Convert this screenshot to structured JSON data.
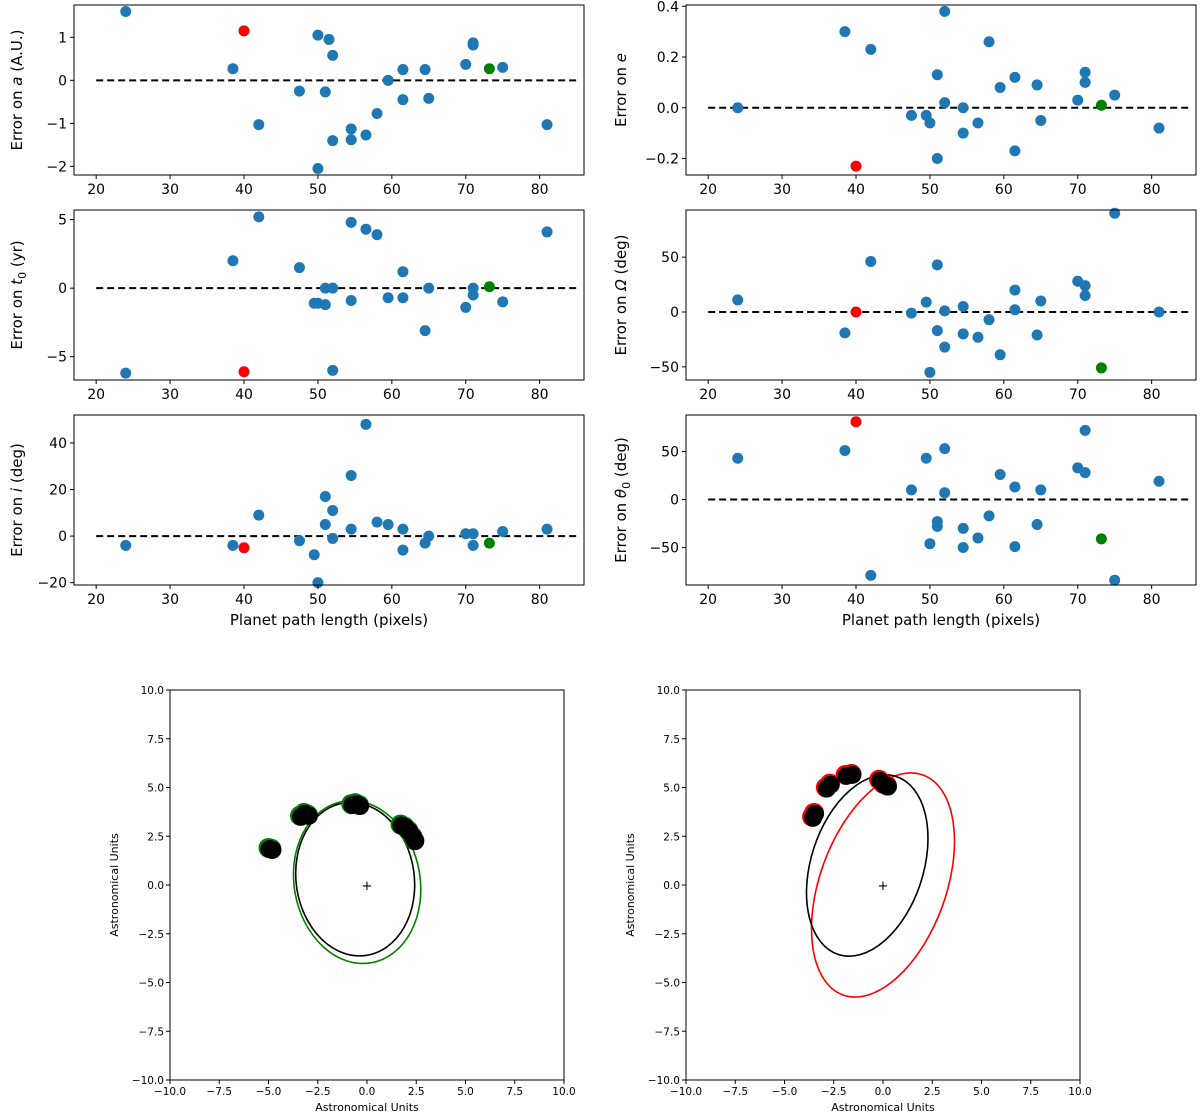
{
  "chart_data": [
    {
      "type": "scatter",
      "ylabel_pre": "Error on ",
      "ylabel_sym": "a",
      "ylabel_post": " (A.U.)",
      "xlabel": "",
      "xlim": [
        17,
        86
      ],
      "ylim": [
        -2.2,
        1.75
      ],
      "xticks": [
        20,
        30,
        40,
        50,
        60,
        70,
        80
      ],
      "yticks": [
        -2,
        -1,
        0,
        1
      ],
      "ytick_labels": [
        "−2",
        "−1",
        "0",
        "1"
      ],
      "reference_line_y": 0,
      "series": [
        {
          "color": "#1f77b4",
          "points": [
            [
              24,
              1.6
            ],
            [
              38.5,
              0.27
            ],
            [
              42,
              -1.03
            ],
            [
              47.5,
              -0.25
            ],
            [
              50,
              1.05
            ],
            [
              50,
              -2.05
            ],
            [
              51,
              -0.27
            ],
            [
              51.5,
              0.95
            ],
            [
              52,
              0.58
            ],
            [
              52,
              -1.4
            ],
            [
              54.5,
              -1.13
            ],
            [
              54.5,
              -1.38
            ],
            [
              56.5,
              -1.27
            ],
            [
              58,
              -0.77
            ],
            [
              59.5,
              0.0
            ],
            [
              61.5,
              0.25
            ],
            [
              61.5,
              -0.45
            ],
            [
              64.5,
              0.25
            ],
            [
              65,
              -0.42
            ],
            [
              70,
              0.37
            ],
            [
              71,
              0.87
            ],
            [
              71,
              0.82
            ],
            [
              75,
              0.3
            ],
            [
              81,
              -1.03
            ]
          ]
        },
        {
          "color": "#ff0000",
          "points": [
            [
              40,
              1.15
            ]
          ]
        },
        {
          "color": "#008000",
          "points": [
            [
              73.2,
              0.27
            ]
          ]
        }
      ]
    },
    {
      "type": "scatter",
      "ylabel_pre": "Error on ",
      "ylabel_sym": "e",
      "ylabel_post": "",
      "xlabel": "",
      "xlim": [
        17,
        86
      ],
      "ylim": [
        -0.265,
        0.405
      ],
      "xticks": [
        20,
        30,
        40,
        50,
        60,
        70,
        80
      ],
      "yticks": [
        -0.2,
        0.0,
        0.2,
        0.4
      ],
      "ytick_labels": [
        "−0.2",
        "0.0",
        "0.2",
        "0.4"
      ],
      "reference_line_y": 0,
      "series": [
        {
          "color": "#1f77b4",
          "points": [
            [
              24,
              0.0
            ],
            [
              38.5,
              0.3
            ],
            [
              42,
              0.23
            ],
            [
              47.5,
              -0.03
            ],
            [
              49.5,
              -0.03
            ],
            [
              50,
              -0.06
            ],
            [
              51,
              0.13
            ],
            [
              51,
              -0.2
            ],
            [
              52,
              0.38
            ],
            [
              52,
              0.02
            ],
            [
              54.5,
              -0.1
            ],
            [
              54.5,
              0.0
            ],
            [
              56.5,
              -0.06
            ],
            [
              58,
              0.26
            ],
            [
              59.5,
              0.08
            ],
            [
              61.5,
              0.12
            ],
            [
              61.5,
              -0.17
            ],
            [
              64.5,
              0.09
            ],
            [
              65,
              -0.05
            ],
            [
              70,
              0.03
            ],
            [
              71,
              0.14
            ],
            [
              71,
              0.1
            ],
            [
              75,
              0.05
            ],
            [
              81,
              -0.08
            ]
          ]
        },
        {
          "color": "#ff0000",
          "points": [
            [
              40,
              -0.23
            ]
          ]
        },
        {
          "color": "#008000",
          "points": [
            [
              73.2,
              0.01
            ]
          ]
        }
      ]
    },
    {
      "type": "scatter",
      "ylabel_pre": "Error on ",
      "ylabel_sym": "t",
      "ylabel_sub": "0",
      "ylabel_post": " (yr)",
      "xlabel": "",
      "xlim": [
        17,
        86
      ],
      "ylim": [
        -6.7,
        5.7
      ],
      "xticks": [
        20,
        30,
        40,
        50,
        60,
        70,
        80
      ],
      "yticks": [
        -5,
        0,
        5
      ],
      "ytick_labels": [
        "−5",
        "0",
        "5"
      ],
      "reference_line_y": 0,
      "series": [
        {
          "color": "#1f77b4",
          "points": [
            [
              24,
              -6.2
            ],
            [
              38.5,
              2.0
            ],
            [
              42,
              5.2
            ],
            [
              47.5,
              1.5
            ],
            [
              49.5,
              -1.1
            ],
            [
              50,
              -1.1
            ],
            [
              51,
              0.0
            ],
            [
              51,
              -1.2
            ],
            [
              52,
              0.0
            ],
            [
              52,
              -6.0
            ],
            [
              54.5,
              4.8
            ],
            [
              54.5,
              -0.9
            ],
            [
              56.5,
              4.3
            ],
            [
              58,
              3.9
            ],
            [
              59.5,
              -0.7
            ],
            [
              61.5,
              1.2
            ],
            [
              61.5,
              -0.7
            ],
            [
              64.5,
              -3.1
            ],
            [
              65,
              0.0
            ],
            [
              70,
              -1.4
            ],
            [
              71,
              0.0
            ],
            [
              71,
              -0.5
            ],
            [
              75,
              -1.0
            ],
            [
              81,
              4.1
            ]
          ]
        },
        {
          "color": "#ff0000",
          "points": [
            [
              40,
              -6.1
            ]
          ]
        },
        {
          "color": "#008000",
          "points": [
            [
              73.2,
              0.1
            ]
          ]
        }
      ]
    },
    {
      "type": "scatter",
      "ylabel_pre": "Error on ",
      "ylabel_sym": "Ω",
      "ylabel_post": " (deg)",
      "xlabel": "",
      "xlim": [
        17,
        86
      ],
      "ylim": [
        -62,
        93
      ],
      "xticks": [
        20,
        30,
        40,
        50,
        60,
        70,
        80
      ],
      "yticks": [
        -50,
        0,
        50
      ],
      "ytick_labels": [
        "−50",
        "0",
        "50"
      ],
      "reference_line_y": 0,
      "series": [
        {
          "color": "#1f77b4",
          "points": [
            [
              24,
              11
            ],
            [
              38.5,
              -19
            ],
            [
              42,
              46
            ],
            [
              47.5,
              -1
            ],
            [
              49.5,
              9
            ],
            [
              50,
              -55
            ],
            [
              51,
              43
            ],
            [
              51,
              -17
            ],
            [
              52,
              -32
            ],
            [
              52,
              1
            ],
            [
              54.5,
              5
            ],
            [
              54.5,
              -20
            ],
            [
              56.5,
              -23
            ],
            [
              58,
              -7
            ],
            [
              59.5,
              -39
            ],
            [
              61.5,
              20
            ],
            [
              61.5,
              2
            ],
            [
              64.5,
              -21
            ],
            [
              65,
              10
            ],
            [
              70,
              28
            ],
            [
              71,
              24
            ],
            [
              71,
              15
            ],
            [
              75,
              90
            ],
            [
              81,
              0
            ]
          ]
        },
        {
          "color": "#ff0000",
          "points": [
            [
              40,
              0
            ]
          ]
        },
        {
          "color": "#008000",
          "points": [
            [
              73.2,
              -51
            ]
          ]
        }
      ]
    },
    {
      "type": "scatter",
      "ylabel_pre": "Error on ",
      "ylabel_sym": "i",
      "ylabel_post": " (deg)",
      "xlabel": "Planet path length (pixels)",
      "xlim": [
        17,
        86
      ],
      "ylim": [
        -21,
        52
      ],
      "xticks": [
        20,
        30,
        40,
        50,
        60,
        70,
        80
      ],
      "yticks": [
        -20,
        0,
        20,
        40
      ],
      "ytick_labels": [
        "−20",
        "0",
        "20",
        "40"
      ],
      "reference_line_y": 0,
      "series": [
        {
          "color": "#1f77b4",
          "points": [
            [
              24,
              -4
            ],
            [
              38.5,
              -4
            ],
            [
              42,
              9
            ],
            [
              47.5,
              -2
            ],
            [
              49.5,
              -8
            ],
            [
              50,
              -20
            ],
            [
              51,
              5
            ],
            [
              51,
              17
            ],
            [
              52,
              11
            ],
            [
              52,
              -1
            ],
            [
              54.5,
              26
            ],
            [
              54.5,
              3
            ],
            [
              56.5,
              48
            ],
            [
              58,
              6
            ],
            [
              59.5,
              5
            ],
            [
              61.5,
              3
            ],
            [
              61.5,
              -6
            ],
            [
              64.5,
              -3
            ],
            [
              65,
              0
            ],
            [
              70,
              1
            ],
            [
              71,
              1
            ],
            [
              71,
              -4
            ],
            [
              75,
              2
            ],
            [
              81,
              3
            ]
          ]
        },
        {
          "color": "#ff0000",
          "points": [
            [
              40,
              -5
            ]
          ]
        },
        {
          "color": "#008000",
          "points": [
            [
              73.2,
              -3
            ]
          ]
        }
      ]
    },
    {
      "type": "scatter",
      "ylabel_pre": "Error on ",
      "ylabel_sym": "θ",
      "ylabel_sub": "0",
      "ylabel_post": " (deg)",
      "xlabel": "Planet path length (pixels)",
      "xlim": [
        17,
        86
      ],
      "ylim": [
        -89,
        88
      ],
      "xticks": [
        20,
        30,
        40,
        50,
        60,
        70,
        80
      ],
      "yticks": [
        -50,
        0,
        50
      ],
      "ytick_labels": [
        "−50",
        "0",
        "50"
      ],
      "reference_line_y": 0,
      "series": [
        {
          "color": "#1f77b4",
          "points": [
            [
              24,
              43
            ],
            [
              38.5,
              51
            ],
            [
              42,
              -79
            ],
            [
              47.5,
              10
            ],
            [
              49.5,
              43
            ],
            [
              50,
              -46
            ],
            [
              51,
              -23
            ],
            [
              51,
              -28
            ],
            [
              52,
              53
            ],
            [
              52,
              7
            ],
            [
              54.5,
              -30
            ],
            [
              54.5,
              -50
            ],
            [
              56.5,
              -40
            ],
            [
              58,
              -17
            ],
            [
              59.5,
              26
            ],
            [
              61.5,
              13
            ],
            [
              61.5,
              -49
            ],
            [
              64.5,
              -26
            ],
            [
              65,
              10
            ],
            [
              70,
              33
            ],
            [
              71,
              28
            ],
            [
              71,
              72
            ],
            [
              75,
              -84
            ],
            [
              81,
              19
            ]
          ]
        },
        {
          "color": "#ff0000",
          "points": [
            [
              40,
              81
            ]
          ]
        },
        {
          "color": "#008000",
          "points": [
            [
              73.2,
              -41
            ]
          ]
        }
      ]
    },
    {
      "type": "orbit",
      "xlabel": "Astronomical Units",
      "ylabel": "Astronomical Units",
      "xlim": [
        -10,
        10
      ],
      "ylim": [
        -10,
        10
      ],
      "ticks": [
        -10,
        -7.5,
        -5,
        -2.5,
        0,
        2.5,
        5,
        7.5,
        10
      ],
      "tick_labels": [
        "−10.0",
        "−7.5",
        "−5.0",
        "−2.5",
        "0.0",
        "2.5",
        "5.0",
        "7.5",
        "10.0"
      ],
      "center_marker": "+",
      "fit_color": "#008000",
      "true_color": "#000000",
      "fit_orbit": {
        "cx": -0.5,
        "cy": 0.15,
        "rx": 3.2,
        "ry": 4.2,
        "rotation_deg": -10
      },
      "true_orbit": {
        "cx": -0.6,
        "cy": 0.3,
        "rx": 3.0,
        "ry": 3.95,
        "rotation_deg": -8
      },
      "observations": [
        [
          -5.0,
          1.9
        ],
        [
          -4.85,
          1.85
        ],
        [
          -3.4,
          3.55
        ],
        [
          -3.2,
          3.7
        ],
        [
          -3.0,
          3.6
        ],
        [
          -0.8,
          4.15
        ],
        [
          -0.6,
          4.2
        ],
        [
          -0.4,
          4.1
        ],
        [
          1.7,
          3.1
        ],
        [
          1.9,
          3.0
        ],
        [
          2.1,
          2.8
        ],
        [
          2.3,
          2.5
        ],
        [
          2.4,
          2.3
        ]
      ]
    },
    {
      "type": "orbit",
      "xlabel": "Astronomical Units",
      "ylabel": "Astronomical Units",
      "xlim": [
        -10,
        10
      ],
      "ylim": [
        -10,
        10
      ],
      "ticks": [
        -10,
        -7.5,
        -5,
        -2.5,
        0,
        2.5,
        5,
        7.5,
        10
      ],
      "tick_labels": [
        "−10.0",
        "−7.5",
        "−5.0",
        "−2.5",
        "0.0",
        "2.5",
        "5.0",
        "7.5",
        "10.0"
      ],
      "center_marker": "+",
      "fit_color": "#ff0000",
      "true_color": "#000000",
      "fit_orbit": {
        "cx": 0.0,
        "cy": 0.0,
        "rx": 3.2,
        "ry": 6.0,
        "rotation_deg": 20
      },
      "true_orbit": {
        "cx": -0.8,
        "cy": 1.0,
        "rx": 2.85,
        "ry": 4.8,
        "rotation_deg": 18
      },
      "observations": [
        [
          -3.6,
          3.5
        ],
        [
          -3.5,
          3.7
        ],
        [
          -2.9,
          5.0
        ],
        [
          -2.7,
          5.2
        ],
        [
          -1.9,
          5.65
        ],
        [
          -1.6,
          5.7
        ],
        [
          -0.2,
          5.4
        ],
        [
          0.0,
          5.2
        ],
        [
          0.2,
          5.1
        ]
      ]
    }
  ]
}
